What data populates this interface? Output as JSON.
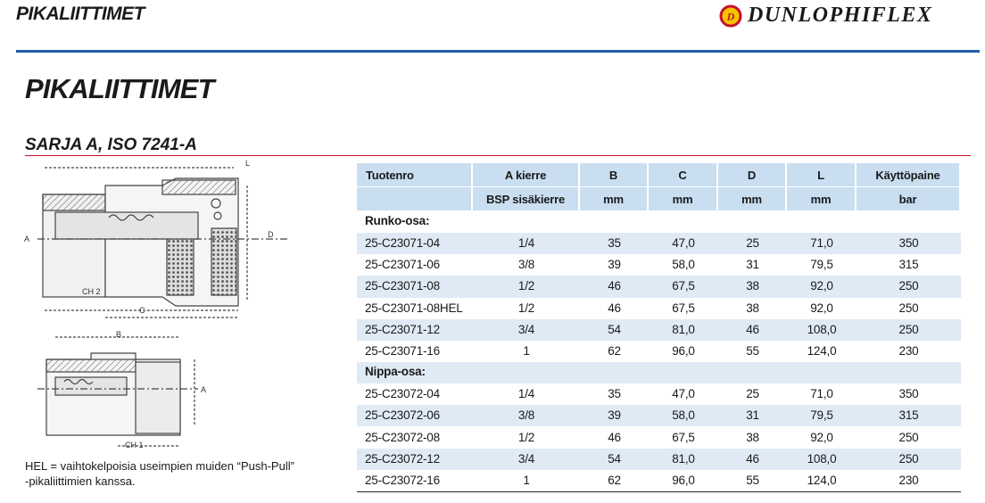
{
  "header": {
    "title": "PIKALIITTIMET",
    "logo_mark": "D",
    "logo": "DUNLOPHIFLEX"
  },
  "main_title": "PIKALIITTIMET",
  "subtitle": "SARJA A, ISO 7241-A",
  "drawing": {
    "labels": [
      "L",
      "A",
      "D",
      "CH 2",
      "C",
      "B",
      "A",
      "CH 1"
    ]
  },
  "note": [
    "HEL = vaihtokelpoisia useimpien muiden “Push-Pull”",
    "-pikaliittimien kanssa."
  ],
  "table": {
    "header_row_1": [
      "Tuotenro",
      "A kierre",
      "B",
      "C",
      "D",
      "L",
      "Käyttöpaine"
    ],
    "header_row_2": [
      "BSP sisäkierre",
      "mm",
      "mm",
      "mm",
      "mm",
      "bar"
    ],
    "sections": [
      {
        "label": "Runko-osa:",
        "rows": [
          [
            "25-C23071-04",
            "1/4",
            "35",
            "47,0",
            "25",
            "71,0",
            "350"
          ],
          [
            "25-C23071-06",
            "3/8",
            "39",
            "58,0",
            "31",
            "79,5",
            "315"
          ],
          [
            "25-C23071-08",
            "1/2",
            "46",
            "67,5",
            "38",
            "92,0",
            "250"
          ],
          [
            "25-C23071-08HEL",
            "1/2",
            "46",
            "67,5",
            "38",
            "92,0",
            "250"
          ],
          [
            "25-C23071-12",
            "3/4",
            "54",
            "81,0",
            "46",
            "108,0",
            "250"
          ],
          [
            "25-C23071-16",
            "1",
            "62",
            "96,0",
            "55",
            "124,0",
            "230"
          ]
        ]
      },
      {
        "label": "Nippa-osa:",
        "rows": [
          [
            "25-C23072-04",
            "1/4",
            "35",
            "47,0",
            "25",
            "71,0",
            "350"
          ],
          [
            "25-C23072-06",
            "3/8",
            "39",
            "58,0",
            "31",
            "79,5",
            "315"
          ],
          [
            "25-C23072-08",
            "1/2",
            "46",
            "67,5",
            "38",
            "92,0",
            "250"
          ],
          [
            "25-C23072-12",
            "3/4",
            "54",
            "81,0",
            "46",
            "108,0",
            "250"
          ],
          [
            "25-C23072-16",
            "1",
            "62",
            "96,0",
            "55",
            "124,0",
            "230"
          ]
        ]
      }
    ]
  }
}
